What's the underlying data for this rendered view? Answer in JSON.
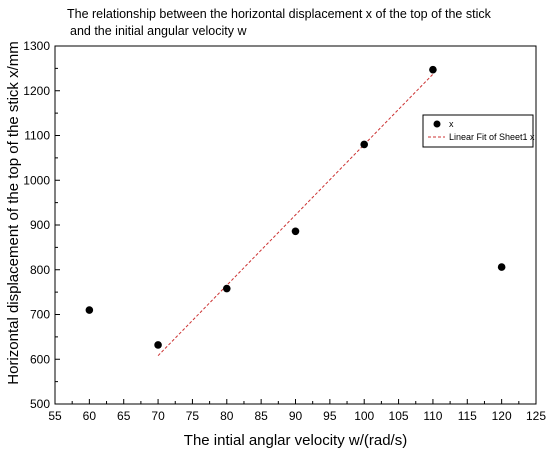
{
  "chart_data": {
    "type": "scatter",
    "title_line1": "The relationship between the horizontal displacement x of the top of the stick",
    "title_line2": "and the initial angular velocity w",
    "xlabel": "The intial anglar velocity w/(rad/s)",
    "ylabel": "Horizontal displacement of the top of the stick x/mm",
    "xlim": [
      55,
      125
    ],
    "ylim": [
      500,
      1300
    ],
    "xticks": [
      "55",
      "60",
      "65",
      "70",
      "75",
      "80",
      "85",
      "90",
      "95",
      "100",
      "105",
      "110",
      "115",
      "120",
      "125"
    ],
    "yticks": [
      "500",
      "600",
      "700",
      "800",
      "900",
      "1000",
      "1100",
      "1200",
      "1300"
    ],
    "grid": false,
    "legend_position": "top-right",
    "series": [
      {
        "name": "x",
        "marker": "filled-circle",
        "color": "#000000",
        "x": [
          60,
          70,
          80,
          90,
          100,
          110,
          120
        ],
        "y": [
          710,
          632,
          758,
          886,
          1080,
          1247,
          806
        ]
      }
    ],
    "fit": {
      "name": "Linear Fit of Sheet1 x",
      "style": "dashed",
      "color": "#cc3333",
      "x": [
        70,
        110
      ],
      "y": [
        608,
        1237
      ]
    }
  }
}
